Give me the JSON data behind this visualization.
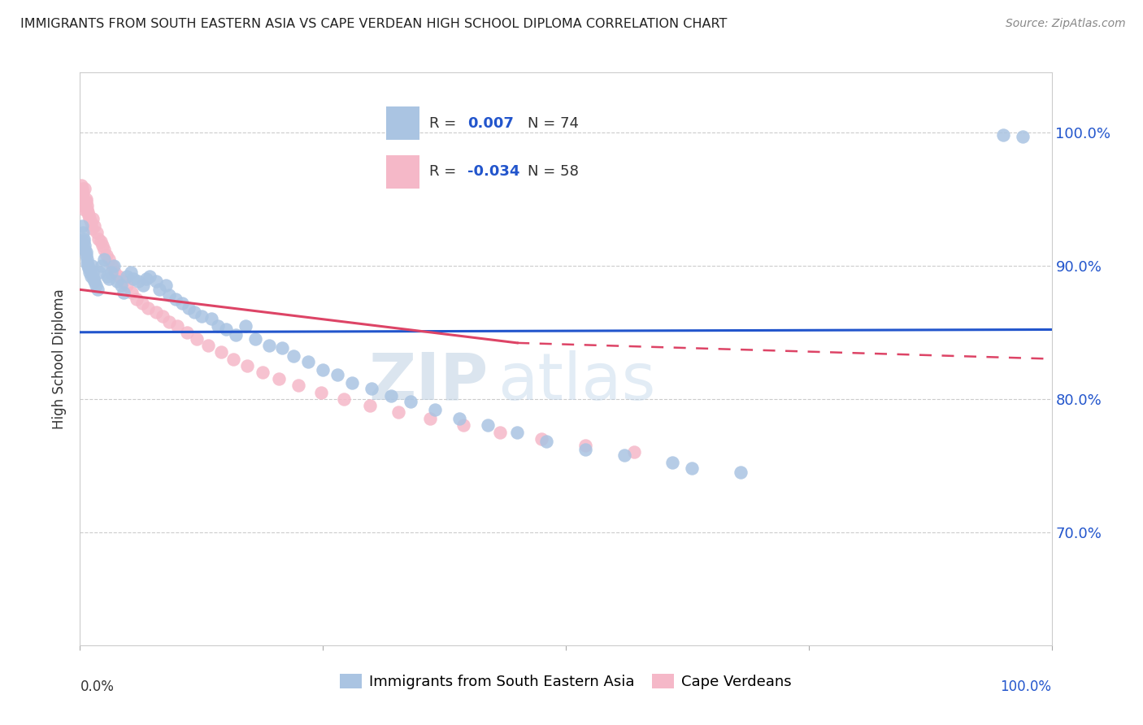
{
  "title": "IMMIGRANTS FROM SOUTH EASTERN ASIA VS CAPE VERDEAN HIGH SCHOOL DIPLOMA CORRELATION CHART",
  "source": "Source: ZipAtlas.com",
  "ylabel": "High School Diploma",
  "right_ytick_labels": [
    "70.0%",
    "80.0%",
    "90.0%",
    "100.0%"
  ],
  "right_ytick_vals": [
    0.7,
    0.8,
    0.9,
    1.0
  ],
  "legend_blue_label": "Immigrants from South Eastern Asia",
  "legend_pink_label": "Cape Verdeans",
  "blue_R": 0.007,
  "blue_N": 74,
  "pink_R": -0.034,
  "pink_N": 58,
  "blue_color": "#aac4e2",
  "pink_color": "#f5b8c8",
  "blue_line_color": "#2255cc",
  "pink_line_color": "#dd4466",
  "watermark_zip": "ZIP",
  "watermark_atlas": "atlas",
  "xlim": [
    0.0,
    1.0
  ],
  "ylim": [
    0.615,
    1.045
  ],
  "blue_scatter_x": [
    0.002,
    0.003,
    0.004,
    0.004,
    0.005,
    0.005,
    0.006,
    0.006,
    0.007,
    0.007,
    0.008,
    0.009,
    0.01,
    0.011,
    0.012,
    0.013,
    0.014,
    0.015,
    0.016,
    0.018,
    0.02,
    0.022,
    0.025,
    0.028,
    0.03,
    0.032,
    0.035,
    0.038,
    0.042,
    0.045,
    0.048,
    0.052,
    0.055,
    0.06,
    0.065,
    0.068,
    0.072,
    0.078,
    0.082,
    0.088,
    0.092,
    0.098,
    0.105,
    0.112,
    0.118,
    0.125,
    0.135,
    0.142,
    0.15,
    0.16,
    0.17,
    0.18,
    0.195,
    0.208,
    0.22,
    0.235,
    0.25,
    0.265,
    0.28,
    0.3,
    0.32,
    0.34,
    0.365,
    0.39,
    0.42,
    0.45,
    0.48,
    0.52,
    0.56,
    0.61,
    0.63,
    0.68,
    0.95,
    0.97
  ],
  "blue_scatter_y": [
    0.93,
    0.925,
    0.92,
    0.918,
    0.915,
    0.912,
    0.91,
    0.908,
    0.905,
    0.902,
    0.9,
    0.898,
    0.895,
    0.892,
    0.9,
    0.895,
    0.89,
    0.888,
    0.885,
    0.882,
    0.895,
    0.9,
    0.905,
    0.892,
    0.89,
    0.895,
    0.9,
    0.888,
    0.885,
    0.88,
    0.892,
    0.895,
    0.89,
    0.888,
    0.885,
    0.89,
    0.892,
    0.888,
    0.882,
    0.885,
    0.878,
    0.875,
    0.872,
    0.868,
    0.865,
    0.862,
    0.86,
    0.855,
    0.852,
    0.848,
    0.855,
    0.845,
    0.84,
    0.838,
    0.832,
    0.828,
    0.822,
    0.818,
    0.812,
    0.808,
    0.802,
    0.798,
    0.792,
    0.785,
    0.78,
    0.775,
    0.768,
    0.762,
    0.758,
    0.752,
    0.748,
    0.745,
    0.998,
    0.997
  ],
  "pink_scatter_x": [
    0.001,
    0.002,
    0.003,
    0.003,
    0.004,
    0.004,
    0.005,
    0.005,
    0.006,
    0.006,
    0.007,
    0.007,
    0.008,
    0.009,
    0.01,
    0.011,
    0.012,
    0.013,
    0.015,
    0.017,
    0.019,
    0.021,
    0.023,
    0.025,
    0.027,
    0.03,
    0.033,
    0.036,
    0.04,
    0.044,
    0.048,
    0.053,
    0.058,
    0.064,
    0.07,
    0.078,
    0.085,
    0.092,
    0.1,
    0.11,
    0.12,
    0.132,
    0.145,
    0.158,
    0.172,
    0.188,
    0.205,
    0.225,
    0.248,
    0.272,
    0.298,
    0.328,
    0.36,
    0.395,
    0.432,
    0.475,
    0.52,
    0.57
  ],
  "pink_scatter_y": [
    0.96,
    0.958,
    0.955,
    0.95,
    0.948,
    0.945,
    0.942,
    0.958,
    0.95,
    0.948,
    0.945,
    0.942,
    0.94,
    0.938,
    0.935,
    0.932,
    0.928,
    0.935,
    0.93,
    0.925,
    0.92,
    0.918,
    0.915,
    0.912,
    0.908,
    0.905,
    0.9,
    0.895,
    0.892,
    0.888,
    0.885,
    0.88,
    0.875,
    0.872,
    0.868,
    0.865,
    0.862,
    0.858,
    0.855,
    0.85,
    0.845,
    0.84,
    0.835,
    0.83,
    0.825,
    0.82,
    0.815,
    0.81,
    0.805,
    0.8,
    0.795,
    0.79,
    0.785,
    0.78,
    0.775,
    0.77,
    0.765,
    0.76
  ]
}
